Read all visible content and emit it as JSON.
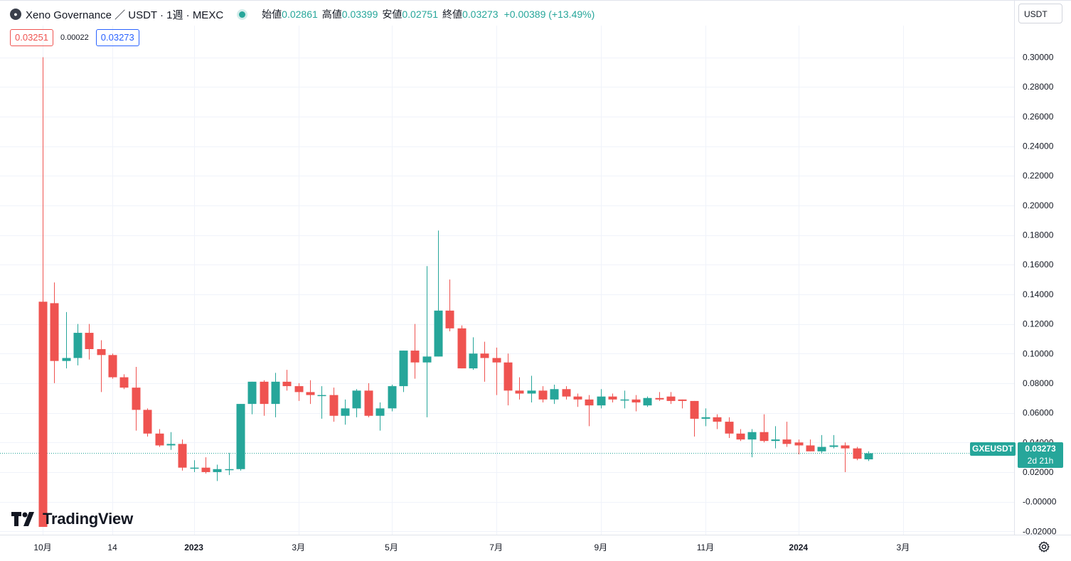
{
  "header": {
    "symbol_title": "Xeno Governance ／ USDT · 1週 · MEXC",
    "open_label": "始値",
    "open_value": "0.02861",
    "high_label": "高値",
    "high_value": "0.03399",
    "low_label": "安値",
    "low_value": "0.02751",
    "close_label": "終値",
    "close_value": "0.03273",
    "change": "+0.00389 (+13.49%)"
  },
  "badges": {
    "sell": "0.03251",
    "spread": "0.00022",
    "buy": "0.03273"
  },
  "currency_select": "USDT",
  "logo_text": "TradingView",
  "last_price": {
    "symbol": "GXEUSDT",
    "price": "0.03273",
    "countdown": "2d 21h",
    "value": 0.03273
  },
  "colors": {
    "up": "#26a69a",
    "down": "#ef5350",
    "grid": "#f0f3fa",
    "axis_text": "#131722"
  },
  "chart_data": {
    "type": "candlestick",
    "interval": "1W",
    "y_ticks": [
      "0.30000",
      "0.28000",
      "0.26000",
      "0.24000",
      "0.22000",
      "0.20000",
      "0.18000",
      "0.16000",
      "0.14000",
      "0.12000",
      "0.10000",
      "0.08000",
      "0.06000",
      "0.04000",
      "0.02000",
      "-0.00000",
      "-0.02000"
    ],
    "y_tick_values": [
      0.3,
      0.28,
      0.26,
      0.24,
      0.22,
      0.2,
      0.18,
      0.16,
      0.14,
      0.12,
      0.1,
      0.08,
      0.06,
      0.04,
      0.02,
      0.0,
      -0.02
    ],
    "ylim": [
      -0.0225,
      0.3125
    ],
    "x_ticks": [
      {
        "label": "10月",
        "index": 0
      },
      {
        "label": "14",
        "index": 6
      },
      {
        "label": "2023",
        "index": 13
      },
      {
        "label": "3月",
        "index": 22
      },
      {
        "label": "5月",
        "index": 30
      },
      {
        "label": "7月",
        "index": 39
      },
      {
        "label": "9月",
        "index": 48
      },
      {
        "label": "11月",
        "index": 57
      },
      {
        "label": "2024",
        "index": 65
      },
      {
        "label": "3月",
        "index": 74
      }
    ],
    "candles": [
      {
        "o": 0.135,
        "h": 0.3,
        "l": -0.017,
        "c": -0.017
      },
      {
        "o": 0.134,
        "h": 0.148,
        "l": 0.08,
        "c": 0.095
      },
      {
        "o": 0.095,
        "h": 0.128,
        "l": 0.09,
        "c": 0.097
      },
      {
        "o": 0.097,
        "h": 0.12,
        "l": 0.092,
        "c": 0.114
      },
      {
        "o": 0.114,
        "h": 0.12,
        "l": 0.096,
        "c": 0.103
      },
      {
        "o": 0.103,
        "h": 0.109,
        "l": 0.074,
        "c": 0.099
      },
      {
        "o": 0.099,
        "h": 0.1,
        "l": 0.083,
        "c": 0.084
      },
      {
        "o": 0.084,
        "h": 0.086,
        "l": 0.076,
        "c": 0.077
      },
      {
        "o": 0.077,
        "h": 0.091,
        "l": 0.048,
        "c": 0.062
      },
      {
        "o": 0.062,
        "h": 0.063,
        "l": 0.044,
        "c": 0.046
      },
      {
        "o": 0.046,
        "h": 0.049,
        "l": 0.037,
        "c": 0.038
      },
      {
        "o": 0.038,
        "h": 0.047,
        "l": 0.035,
        "c": 0.039
      },
      {
        "o": 0.039,
        "h": 0.042,
        "l": 0.021,
        "c": 0.023
      },
      {
        "o": 0.023,
        "h": 0.028,
        "l": 0.02,
        "c": 0.023
      },
      {
        "o": 0.023,
        "h": 0.03,
        "l": 0.019,
        "c": 0.02
      },
      {
        "o": 0.02,
        "h": 0.025,
        "l": 0.014,
        "c": 0.022
      },
      {
        "o": 0.022,
        "h": 0.033,
        "l": 0.018,
        "c": 0.022
      },
      {
        "o": 0.022,
        "h": 0.066,
        "l": 0.021,
        "c": 0.066
      },
      {
        "o": 0.066,
        "h": 0.081,
        "l": 0.059,
        "c": 0.081
      },
      {
        "o": 0.081,
        "h": 0.082,
        "l": 0.058,
        "c": 0.066
      },
      {
        "o": 0.066,
        "h": 0.087,
        "l": 0.057,
        "c": 0.081
      },
      {
        "o": 0.081,
        "h": 0.089,
        "l": 0.075,
        "c": 0.078
      },
      {
        "o": 0.078,
        "h": 0.08,
        "l": 0.068,
        "c": 0.074
      },
      {
        "o": 0.074,
        "h": 0.082,
        "l": 0.066,
        "c": 0.072
      },
      {
        "o": 0.072,
        "h": 0.078,
        "l": 0.056,
        "c": 0.072
      },
      {
        "o": 0.072,
        "h": 0.077,
        "l": 0.054,
        "c": 0.058
      },
      {
        "o": 0.058,
        "h": 0.069,
        "l": 0.052,
        "c": 0.063
      },
      {
        "o": 0.063,
        "h": 0.076,
        "l": 0.057,
        "c": 0.075
      },
      {
        "o": 0.075,
        "h": 0.08,
        "l": 0.057,
        "c": 0.058
      },
      {
        "o": 0.058,
        "h": 0.067,
        "l": 0.048,
        "c": 0.063
      },
      {
        "o": 0.063,
        "h": 0.079,
        "l": 0.061,
        "c": 0.078
      },
      {
        "o": 0.078,
        "h": 0.102,
        "l": 0.074,
        "c": 0.102
      },
      {
        "o": 0.102,
        "h": 0.12,
        "l": 0.083,
        "c": 0.094
      },
      {
        "o": 0.094,
        "h": 0.159,
        "l": 0.057,
        "c": 0.098
      },
      {
        "o": 0.098,
        "h": 0.183,
        "l": 0.098,
        "c": 0.129
      },
      {
        "o": 0.129,
        "h": 0.15,
        "l": 0.115,
        "c": 0.117
      },
      {
        "o": 0.117,
        "h": 0.119,
        "l": 0.09,
        "c": 0.09
      },
      {
        "o": 0.09,
        "h": 0.111,
        "l": 0.089,
        "c": 0.1
      },
      {
        "o": 0.1,
        "h": 0.108,
        "l": 0.081,
        "c": 0.097
      },
      {
        "o": 0.097,
        "h": 0.104,
        "l": 0.072,
        "c": 0.094
      },
      {
        "o": 0.094,
        "h": 0.1,
        "l": 0.065,
        "c": 0.075
      },
      {
        "o": 0.075,
        "h": 0.084,
        "l": 0.069,
        "c": 0.073
      },
      {
        "o": 0.073,
        "h": 0.085,
        "l": 0.067,
        "c": 0.075
      },
      {
        "o": 0.075,
        "h": 0.078,
        "l": 0.067,
        "c": 0.069
      },
      {
        "o": 0.069,
        "h": 0.079,
        "l": 0.066,
        "c": 0.076
      },
      {
        "o": 0.076,
        "h": 0.078,
        "l": 0.069,
        "c": 0.071
      },
      {
        "o": 0.071,
        "h": 0.073,
        "l": 0.064,
        "c": 0.069
      },
      {
        "o": 0.069,
        "h": 0.072,
        "l": 0.051,
        "c": 0.065
      },
      {
        "o": 0.065,
        "h": 0.076,
        "l": 0.063,
        "c": 0.071
      },
      {
        "o": 0.071,
        "h": 0.073,
        "l": 0.067,
        "c": 0.069
      },
      {
        "o": 0.069,
        "h": 0.075,
        "l": 0.063,
        "c": 0.069
      },
      {
        "o": 0.069,
        "h": 0.072,
        "l": 0.061,
        "c": 0.067
      },
      {
        "o": 0.065,
        "h": 0.071,
        "l": 0.064,
        "c": 0.07
      },
      {
        "o": 0.07,
        "h": 0.074,
        "l": 0.068,
        "c": 0.069
      },
      {
        "o": 0.071,
        "h": 0.074,
        "l": 0.066,
        "c": 0.068
      },
      {
        "o": 0.069,
        "h": 0.069,
        "l": 0.063,
        "c": 0.068
      },
      {
        "o": 0.068,
        "h": 0.068,
        "l": 0.044,
        "c": 0.056
      },
      {
        "o": 0.056,
        "h": 0.063,
        "l": 0.051,
        "c": 0.057
      },
      {
        "o": 0.057,
        "h": 0.059,
        "l": 0.049,
        "c": 0.054
      },
      {
        "o": 0.054,
        "h": 0.057,
        "l": 0.043,
        "c": 0.046
      },
      {
        "o": 0.046,
        "h": 0.049,
        "l": 0.041,
        "c": 0.042
      },
      {
        "o": 0.042,
        "h": 0.049,
        "l": 0.03,
        "c": 0.047
      },
      {
        "o": 0.047,
        "h": 0.059,
        "l": 0.04,
        "c": 0.041
      },
      {
        "o": 0.041,
        "h": 0.051,
        "l": 0.036,
        "c": 0.042
      },
      {
        "o": 0.042,
        "h": 0.054,
        "l": 0.037,
        "c": 0.039
      },
      {
        "o": 0.04,
        "h": 0.042,
        "l": 0.032,
        "c": 0.038
      },
      {
        "o": 0.038,
        "h": 0.042,
        "l": 0.034,
        "c": 0.034
      },
      {
        "o": 0.034,
        "h": 0.045,
        "l": 0.033,
        "c": 0.037
      },
      {
        "o": 0.037,
        "h": 0.045,
        "l": 0.036,
        "c": 0.038
      },
      {
        "o": 0.038,
        "h": 0.04,
        "l": 0.02,
        "c": 0.036
      },
      {
        "o": 0.036,
        "h": 0.037,
        "l": 0.028,
        "c": 0.029
      },
      {
        "o": 0.0286,
        "h": 0.034,
        "l": 0.0275,
        "c": 0.0327
      }
    ]
  }
}
